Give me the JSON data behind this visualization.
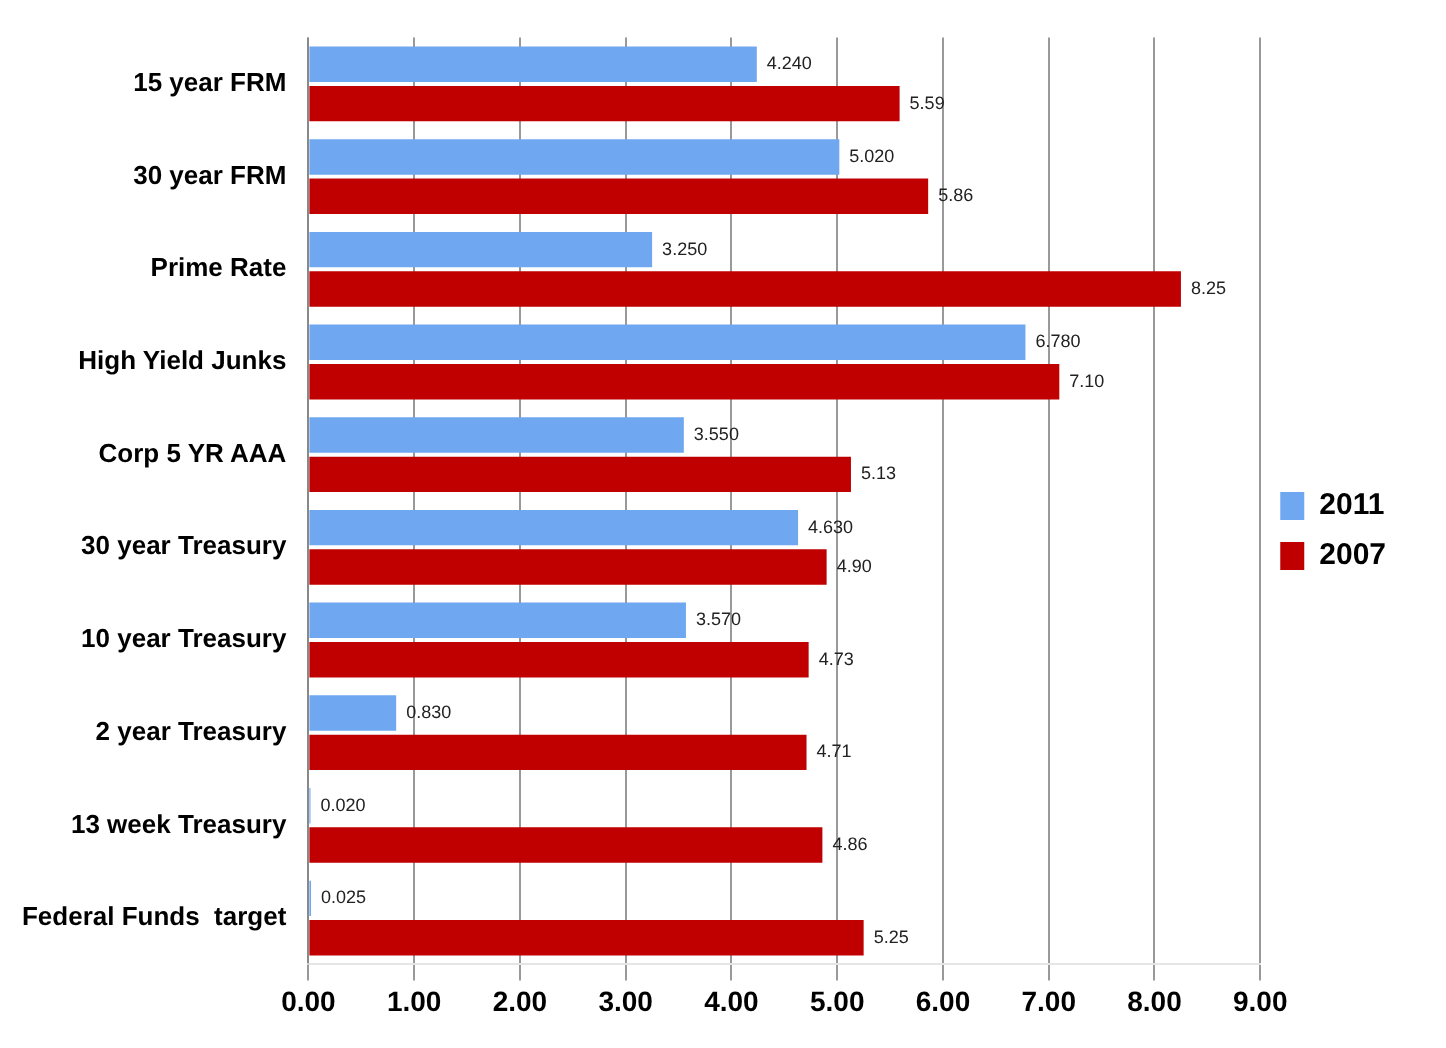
{
  "chart_data": {
    "type": "bar",
    "orientation": "horizontal",
    "categories": [
      "15 year FRM",
      "30 year FRM",
      "Prime Rate",
      "High Yield Junks",
      "Corp 5 YR AAA",
      "30 year Treasury",
      "10 year Treasury",
      "2 year Treasury",
      "13 week Treasury",
      "Federal Funds  target"
    ],
    "series": [
      {
        "name": "2011",
        "color": "#6fa8f0",
        "values": [
          4.24,
          5.02,
          3.25,
          6.78,
          3.55,
          4.63,
          3.57,
          0.83,
          0.02,
          0.025
        ],
        "value_labels": [
          "4.240",
          "5.020",
          "3.250",
          "6.780",
          "3.550",
          "4.630",
          "3.570",
          "0.830",
          "0.020",
          "0.025"
        ]
      },
      {
        "name": "2007",
        "color": "#c00000",
        "values": [
          5.59,
          5.86,
          8.25,
          7.1,
          5.13,
          4.9,
          4.73,
          4.71,
          4.86,
          5.25
        ],
        "value_labels": [
          "5.59",
          "5.86",
          "8.25",
          "7.10",
          "5.13",
          "4.90",
          "4.73",
          "4.71",
          "4.86",
          "5.25"
        ]
      }
    ],
    "xlim": [
      0,
      9
    ],
    "xticks": [
      {
        "value": 0,
        "label": "0.00"
      },
      {
        "value": 1,
        "label": "1.00"
      },
      {
        "value": 2,
        "label": "2.00"
      },
      {
        "value": 3,
        "label": "3.00"
      },
      {
        "value": 4,
        "label": "4.00"
      },
      {
        "value": 5,
        "label": "5.00"
      },
      {
        "value": 6,
        "label": "6.00"
      },
      {
        "value": 7,
        "label": "7.00"
      },
      {
        "value": 8,
        "label": "8.00"
      },
      {
        "value": 9,
        "label": "9.00"
      }
    ],
    "grid": "x",
    "legend": "right"
  }
}
